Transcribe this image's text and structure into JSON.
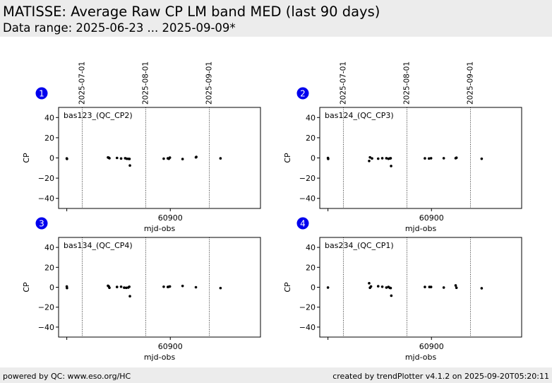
{
  "header": {
    "title": "MATISSE: Average Raw CP LM band MED (last 90 days)",
    "subtitle": "Data range: 2025-06-23 ... 2025-09-09*"
  },
  "footer": {
    "left": "powered by QC: www.eso.org/HC",
    "right": "created by trendPlotter v4.1.2 on 2025-09-20T05:20:11"
  },
  "chart_data": [
    {
      "type": "scatter",
      "number": "1",
      "label": "bas123_(QC_CP2)",
      "xlabel": "mjd-obs",
      "ylabel": "CP",
      "xlim": [
        60845.5,
        60944
      ],
      "ylim": [
        -50,
        50
      ],
      "xticks": [
        {
          "value": 60900,
          "label": "60900"
        }
      ],
      "yticks": [
        -40,
        -20,
        0,
        20,
        40
      ],
      "vlines": [
        {
          "value": 60857,
          "label": "2025-07-01"
        },
        {
          "value": 60888,
          "label": "2025-08-01"
        },
        {
          "value": 60919,
          "label": "2025-09-01"
        }
      ],
      "x": [
        60849.5,
        60849.6,
        60869.6,
        60870.0,
        60870.3,
        60874.0,
        60876.0,
        60878.0,
        60878.8,
        60879.7,
        60880.1,
        60880.3,
        60896.8,
        60898.8,
        60899.3,
        60899.8,
        60906.0,
        60912.5,
        60912.7,
        60924.5
      ],
      "y": [
        -0.5,
        -1.0,
        0.5,
        0.2,
        -0.3,
        0.0,
        -0.6,
        -0.3,
        -0.8,
        -0.9,
        -1.0,
        -7.5,
        -0.7,
        -0.4,
        -0.8,
        0.3,
        -1.1,
        0.6,
        1.0,
        -0.4
      ]
    },
    {
      "type": "scatter",
      "number": "2",
      "label": "bas124_(QC_CP3)",
      "xlabel": "mjd-obs",
      "ylabel": "CP",
      "xlim": [
        60845.5,
        60944
      ],
      "ylim": [
        -50,
        50
      ],
      "xticks": [
        {
          "value": 60900,
          "label": "60900"
        }
      ],
      "yticks": [
        -40,
        -20,
        0,
        20,
        40
      ],
      "vlines": [
        {
          "value": 60857,
          "label": "2025-07-01"
        },
        {
          "value": 60888,
          "label": "2025-08-01"
        },
        {
          "value": 60919,
          "label": "2025-09-01"
        }
      ],
      "x": [
        60849.5,
        60849.6,
        60869.6,
        60870.0,
        60871.0,
        60874.0,
        60876.0,
        60878.0,
        60879.0,
        60879.7,
        60880.1,
        60880.3,
        60896.8,
        60898.8,
        60899.8,
        60906.0,
        60911.8,
        60912.2,
        60924.5
      ],
      "y": [
        0.0,
        -1.0,
        -3.0,
        0.6,
        -0.5,
        -0.7,
        -0.3,
        -0.3,
        -0.8,
        -0.5,
        -0.3,
        -8.0,
        -0.4,
        -0.6,
        -0.3,
        -0.3,
        -0.3,
        0.2,
        -0.8
      ]
    },
    {
      "type": "scatter",
      "number": "3",
      "label": "bas134_(QC_CP4)",
      "xlabel": "mjd-obs",
      "ylabel": "CP",
      "xlim": [
        60845.5,
        60944
      ],
      "ylim": [
        -50,
        50
      ],
      "xticks": [
        {
          "value": 60900,
          "label": "60900"
        }
      ],
      "yticks": [
        -40,
        -20,
        0,
        20,
        40
      ],
      "vlines": [
        {
          "value": 60857,
          "label": "2025-07-01"
        },
        {
          "value": 60888,
          "label": "2025-08-01"
        },
        {
          "value": 60919,
          "label": "2025-09-01"
        }
      ],
      "x": [
        60849.5,
        60849.6,
        60869.6,
        60870.0,
        60870.3,
        60874.0,
        60876.0,
        60877.5,
        60878.5,
        60879.5,
        60880.0,
        60880.3,
        60896.8,
        60898.8,
        60899.3,
        60899.8,
        60906.0,
        60912.5,
        60924.5
      ],
      "y": [
        0.8,
        -0.8,
        1.5,
        0.8,
        -0.5,
        0.3,
        0.5,
        -0.4,
        -0.6,
        -0.3,
        0.5,
        -9.0,
        0.5,
        0.3,
        0.5,
        0.8,
        1.3,
        0.0,
        -0.8
      ]
    },
    {
      "type": "scatter",
      "number": "4",
      "label": "bas234_(QC_CP1)",
      "xlabel": "mjd-obs",
      "ylabel": "CP",
      "xlim": [
        60845.5,
        60944
      ],
      "ylim": [
        -50,
        50
      ],
      "xticks": [
        {
          "value": 60900,
          "label": "60900"
        }
      ],
      "yticks": [
        -40,
        -20,
        0,
        20,
        40
      ],
      "vlines": [
        {
          "value": 60857,
          "label": "2025-07-01"
        },
        {
          "value": 60888,
          "label": "2025-08-01"
        },
        {
          "value": 60919,
          "label": "2025-09-01"
        }
      ],
      "x": [
        60849.5,
        60869.6,
        60870.0,
        60870.5,
        60874.0,
        60876.0,
        60878.0,
        60879.0,
        60879.7,
        60880.1,
        60880.4,
        60896.8,
        60899.0,
        60899.8,
        60906.0,
        60911.8,
        60912.2,
        60924.5
      ],
      "y": [
        -0.3,
        4.0,
        -0.5,
        0.8,
        1.0,
        0.5,
        -0.3,
        0.3,
        -0.6,
        -0.8,
        -8.5,
        0.3,
        0.3,
        0.3,
        -0.3,
        1.8,
        -0.5,
        -1.0
      ]
    }
  ]
}
